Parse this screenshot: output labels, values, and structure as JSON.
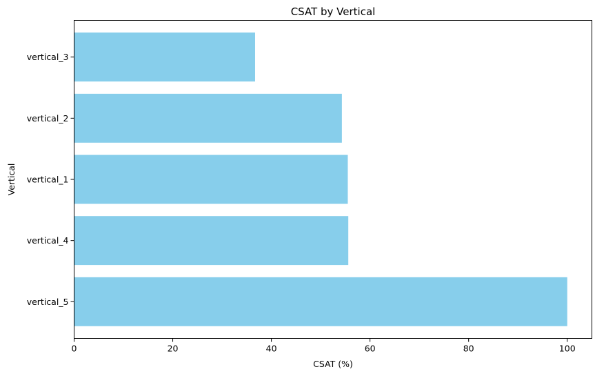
{
  "chart_data": {
    "type": "bar",
    "orientation": "horizontal",
    "title": "CSAT by Vertical",
    "xlabel": "CSAT (%)",
    "ylabel": "Vertical",
    "categories": [
      "vertical_5",
      "vertical_4",
      "vertical_1",
      "vertical_2",
      "vertical_3"
    ],
    "values": [
      100.0,
      55.6,
      55.5,
      54.3,
      36.7
    ],
    "xlim": [
      0,
      105
    ],
    "xticks": [
      0,
      20,
      40,
      60,
      80,
      100
    ],
    "bar_color": "#87CEEB",
    "grid": false,
    "legend": false
  }
}
